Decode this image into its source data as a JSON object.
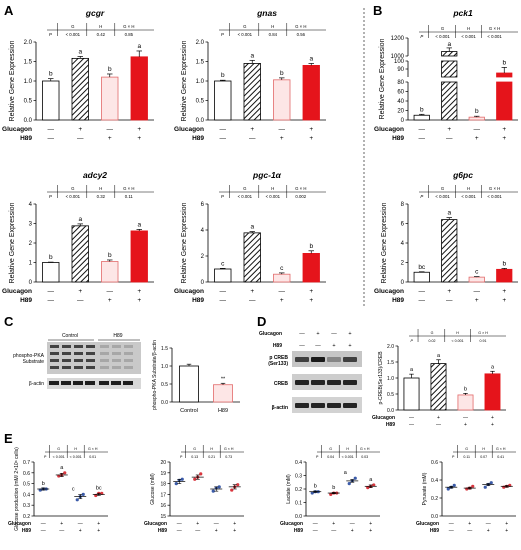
{
  "figure": {
    "panel_letters": [
      "A",
      "B",
      "C",
      "D",
      "E"
    ],
    "treatment_labels": [
      "Glucagon",
      "H89"
    ],
    "plus": "+",
    "minus": "—"
  },
  "colors": {
    "red": "#e5141b",
    "pink_fill": "#fde6e6",
    "pink_edge": "#e26a6a",
    "white_fill": "#ffffff",
    "dark": "#222222",
    "blue_dot": "#3b5ba9",
    "red_dot": "#d9363e"
  },
  "chart_data": [
    {
      "id": "gcgr",
      "panel": "A",
      "type": "bar",
      "title": "gcgr",
      "ylabel": "Relative Gene Expression",
      "ylim": [
        0,
        2
      ],
      "yticks": [
        "0.0",
        "0.5",
        "1.0",
        "1.5",
        "2.0"
      ],
      "values": [
        1.0,
        1.58,
        1.1,
        1.62
      ],
      "errors": [
        0.06,
        0.05,
        0.08,
        0.15
      ],
      "letters": [
        "b",
        "a",
        "b",
        "a"
      ],
      "stats": {
        "headers": [
          "G",
          "H",
          "G × H"
        ],
        "values": [
          "< 0.001",
          "0.42",
          "0.85"
        ],
        "p": "P"
      },
      "glucagon": [
        "—",
        "+",
        "—",
        "+"
      ],
      "h89": [
        "—",
        "—",
        "+",
        "+"
      ]
    },
    {
      "id": "gnas",
      "panel": "A",
      "type": "bar",
      "title": "gnas",
      "ylabel": "Relative Gene Expression",
      "ylim": [
        0,
        2
      ],
      "yticks": [
        "0.0",
        "0.5",
        "1.0",
        "1.5",
        "2.0"
      ],
      "values": [
        1.0,
        1.45,
        1.03,
        1.4
      ],
      "errors": [
        0.02,
        0.08,
        0.05,
        0.05
      ],
      "letters": [
        "b",
        "a",
        "b",
        "a"
      ],
      "stats": {
        "headers": [
          "G",
          "H",
          "G × H"
        ],
        "values": [
          "< 0.001",
          "0.84",
          "0.56"
        ],
        "p": "P"
      },
      "glucagon": [
        "—",
        "+",
        "—",
        "+"
      ],
      "h89": [
        "—",
        "—",
        "+",
        "+"
      ]
    },
    {
      "id": "pck1",
      "panel": "B",
      "type": "bar",
      "title": "pck1",
      "ylabel": "Relative Gene Expression",
      "broken_axis": true,
      "lower_yticks": [
        "0",
        "20",
        "40",
        "60",
        "80"
      ],
      "middle_yticks": [
        "80",
        "90",
        "100"
      ],
      "upper_yticks": [
        "1000",
        "1200"
      ],
      "values": [
        10,
        1050,
        6,
        85
      ],
      "errors": [
        2,
        40,
        2,
        7
      ],
      "letters": [
        "b",
        "a",
        "b",
        "b"
      ],
      "stats": {
        "headers": [
          "G",
          "H",
          "G × H"
        ],
        "values": [
          "< 0.001",
          "< 0.001",
          "< 0.001"
        ],
        "p": "P"
      },
      "glucagon": [
        "—",
        "+",
        "—",
        "+"
      ],
      "h89": [
        "—",
        "—",
        "+",
        "+"
      ]
    },
    {
      "id": "adcy2",
      "panel": "A",
      "type": "bar",
      "title": "adcy2",
      "ylabel": "Relative Gene Expression",
      "ylim": [
        0,
        4
      ],
      "yticks": [
        "0",
        "1",
        "2",
        "3",
        "4"
      ],
      "values": [
        1.0,
        2.88,
        1.05,
        2.62
      ],
      "errors": [
        0.02,
        0.1,
        0.08,
        0.08
      ],
      "letters": [
        "b",
        "a",
        "b",
        "a"
      ],
      "stats": {
        "headers": [
          "G",
          "H",
          "G × H"
        ],
        "values": [
          "< 0.001",
          "0.32",
          "0.11"
        ],
        "p": "P"
      },
      "glucagon": [
        "—",
        "+",
        "—",
        "+"
      ],
      "h89": [
        "—",
        "—",
        "+",
        "+"
      ]
    },
    {
      "id": "pgc1a",
      "panel": "A",
      "type": "bar",
      "title": "pgc-1α",
      "ylabel": "Relative Gene Expression",
      "ylim": [
        0,
        6
      ],
      "yticks": [
        "0",
        "2",
        "4",
        "6"
      ],
      "values": [
        1.0,
        3.78,
        0.6,
        2.2
      ],
      "errors": [
        0.05,
        0.1,
        0.1,
        0.2
      ],
      "letters": [
        "c",
        "a",
        "c",
        "b"
      ],
      "stats": {
        "headers": [
          "G",
          "H",
          "G × H"
        ],
        "values": [
          "< 0.001",
          "< 0.001",
          "0.002"
        ],
        "p": "P"
      },
      "glucagon": [
        "—",
        "+",
        "—",
        "+"
      ],
      "h89": [
        "—",
        "—",
        "+",
        "+"
      ]
    },
    {
      "id": "g6pc",
      "panel": "B",
      "type": "bar",
      "title": "g6pc",
      "ylabel": "Relative Gene Expression",
      "ylim": [
        0,
        8
      ],
      "yticks": [
        "0",
        "2",
        "4",
        "6",
        "8"
      ],
      "values": [
        1.0,
        6.4,
        0.5,
        1.3
      ],
      "errors": [
        0.05,
        0.2,
        0.05,
        0.1
      ],
      "letters": [
        "bc",
        "a",
        "c",
        "b"
      ],
      "stats": {
        "headers": [
          "G",
          "H",
          "G × H"
        ],
        "values": [
          "< 0.001",
          "< 0.001",
          "< 0.001"
        ],
        "p": "P"
      },
      "glucagon": [
        "—",
        "+",
        "—",
        "+"
      ],
      "h89": [
        "—",
        "—",
        "+",
        "+"
      ]
    },
    {
      "id": "pka",
      "panel": "C",
      "type": "bar",
      "ylabel": "phospho-PKA Substrate/β-actin",
      "ylim": [
        0,
        1.5
      ],
      "yticks": [
        "0.0",
        "0.5",
        "1.0",
        "1.5"
      ],
      "categories": [
        "Control",
        "H89"
      ],
      "values": [
        1.0,
        0.48
      ],
      "errors": [
        0.05,
        0.04
      ],
      "annotations": [
        "",
        "**"
      ]
    },
    {
      "id": "creb",
      "panel": "D",
      "type": "bar",
      "ylabel": "p-CREB(Ser133)/CREB",
      "ylim": [
        0,
        2
      ],
      "yticks": [
        "0.0",
        "0.5",
        "1.0",
        "1.5",
        "2.0"
      ],
      "values": [
        1.0,
        1.45,
        0.47,
        1.13
      ],
      "errors": [
        0.12,
        0.12,
        0.05,
        0.08
      ],
      "letters": [
        "a",
        "a",
        "b",
        "a"
      ],
      "stats": {
        "headers": [
          "G",
          "H",
          "G × H"
        ],
        "values": [
          "0.02",
          "< 0.001",
          "0.91"
        ],
        "p": "P"
      },
      "glucagon": [
        "—",
        "+",
        "—",
        "+"
      ],
      "h89": [
        "—",
        "—",
        "+",
        "+"
      ]
    },
    {
      "id": "glucose_production",
      "panel": "E",
      "type": "scatter",
      "ylabel": "Glucose production (mM/ 2×10⁶ cells)",
      "ylim": [
        0.2,
        0.7
      ],
      "yticks": [
        "0.2",
        "0.3",
        "0.4",
        "0.5",
        "0.6",
        "0.7"
      ],
      "groups": [
        [
          0.44,
          0.45,
          0.45
        ],
        [
          0.57,
          0.58,
          0.6
        ],
        [
          0.35,
          0.38,
          0.4
        ],
        [
          0.39,
          0.41,
          0.41
        ]
      ],
      "means": [
        0.45,
        0.58,
        0.38,
        0.4
      ],
      "errors": [
        0.01,
        0.015,
        0.02,
        0.01
      ],
      "letters": [
        "b",
        "a",
        "c",
        "bc"
      ],
      "stats": {
        "headers": [
          "G",
          "H",
          "G × H"
        ],
        "values": [
          "< 0.001",
          "< 0.001",
          "0.01"
        ],
        "p": "P"
      },
      "glucagon": [
        "—",
        "+",
        "—",
        "+"
      ],
      "h89": [
        "—",
        "—",
        "+",
        "+"
      ]
    },
    {
      "id": "glucose",
      "panel": "E",
      "type": "scatter",
      "ylabel": "Glucose (mM)",
      "ylim": [
        15,
        20
      ],
      "yticks": [
        "15",
        "16",
        "17",
        "18",
        "19",
        "20"
      ],
      "groups": [
        [
          18.0,
          18.3,
          18.4
        ],
        [
          18.4,
          18.6,
          18.9
        ],
        [
          17.3,
          17.6,
          17.7
        ],
        [
          17.4,
          17.7,
          17.9
        ]
      ],
      "means": [
        18.2,
        18.6,
        17.5,
        17.7
      ],
      "errors": [
        0.2,
        0.2,
        0.2,
        0.2
      ],
      "stats": {
        "headers": [
          "G",
          "H",
          "G × H"
        ],
        "values": [
          "0.13",
          "0.21",
          "0.73"
        ],
        "p": "P"
      },
      "glucagon": [
        "—",
        "+",
        "—",
        "+"
      ],
      "h89": [
        "—",
        "—",
        "+",
        "+"
      ]
    },
    {
      "id": "lactate",
      "panel": "E",
      "type": "scatter",
      "ylabel": "Lactate (mM)",
      "ylim": [
        0.0,
        0.4
      ],
      "yticks": [
        "0.0",
        "0.1",
        "0.2",
        "0.3",
        "0.4"
      ],
      "groups": [
        [
          0.17,
          0.18,
          0.18
        ],
        [
          0.16,
          0.17,
          0.17
        ],
        [
          0.24,
          0.26,
          0.28
        ],
        [
          0.21,
          0.22,
          0.23
        ]
      ],
      "means": [
        0.18,
        0.17,
        0.26,
        0.22
      ],
      "errors": [
        0.005,
        0.005,
        0.01,
        0.01
      ],
      "letters": [
        "b",
        "b",
        "a",
        "a"
      ],
      "stats": {
        "headers": [
          "G",
          "H",
          "G × H"
        ],
        "values": [
          "0.04",
          "< 0.001",
          "0.03"
        ],
        "p": "P"
      },
      "glucagon": [
        "—",
        "+",
        "—",
        "+"
      ],
      "h89": [
        "—",
        "—",
        "+",
        "+"
      ]
    },
    {
      "id": "pyruvate",
      "panel": "E",
      "type": "scatter",
      "ylabel": "Pyruvate (mM)",
      "ylim": [
        0.0,
        0.6
      ],
      "yticks": [
        "0.0",
        "0.2",
        "0.4",
        "0.6"
      ],
      "groups": [
        [
          0.3,
          0.32,
          0.34
        ],
        [
          0.3,
          0.31,
          0.33
        ],
        [
          0.32,
          0.35,
          0.37
        ],
        [
          0.32,
          0.33,
          0.34
        ]
      ],
      "means": [
        0.32,
        0.31,
        0.35,
        0.33
      ],
      "errors": [
        0.01,
        0.01,
        0.01,
        0.01
      ],
      "stats": {
        "headers": [
          "G",
          "H",
          "G × H"
        ],
        "values": [
          "0.11",
          "0.07",
          "0.41"
        ],
        "p": "P"
      },
      "glucagon": [
        "—",
        "+",
        "—",
        "+"
      ],
      "h89": [
        "—",
        "—",
        "+",
        "+"
      ]
    }
  ],
  "blots": {
    "C": {
      "group_labels": [
        "Control",
        "H89"
      ],
      "bands": [
        "phospho-PKA Substrate",
        "β-actin"
      ],
      "categories": [
        "Control",
        "H89"
      ]
    },
    "D": {
      "treatment_labels": [
        "Glucagon",
        "H89"
      ],
      "glucagon": [
        "—",
        "+",
        "—",
        "+"
      ],
      "h89": [
        "—",
        "—",
        "+",
        "+"
      ],
      "bands": [
        "p CREB (Ser133)",
        "CREB",
        "β-actin"
      ]
    }
  }
}
